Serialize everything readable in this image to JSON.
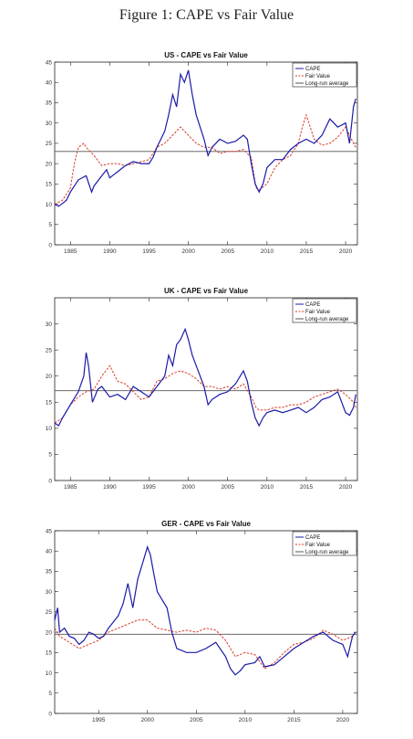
{
  "figure_title": "Figure 1: CAPE vs Fair Value",
  "colors": {
    "cape": "#1a1aa8",
    "fair_value": "#d93a2b",
    "long_run": "#555555",
    "axes": "#222222"
  },
  "chart_data": [
    {
      "type": "line",
      "title": "US - CAPE vs Fair Value",
      "xlabel": "",
      "ylabel": "",
      "xlim": [
        1983,
        2021.5
      ],
      "ylim": [
        0,
        45
      ],
      "xticks": [
        1985,
        1990,
        1995,
        2000,
        2005,
        2010,
        2015,
        2020
      ],
      "yticks": [
        0,
        5,
        10,
        15,
        20,
        25,
        30,
        35,
        40,
        45
      ],
      "grid": false,
      "legend": "top-right",
      "long_run_average": 23,
      "series": [
        {
          "name": "CAPE",
          "x": [
            1983,
            1983.5,
            1984,
            1984.5,
            1985,
            1985.5,
            1986,
            1987,
            1987.7,
            1988,
            1989,
            1989.6,
            1990,
            1991,
            1992,
            1993,
            1994,
            1995,
            1995.5,
            1996,
            1997,
            1997.5,
            1998,
            1998.5,
            1999,
            1999.5,
            2000,
            2000.5,
            2001,
            2001.5,
            2002,
            2002.5,
            2003,
            2004,
            2005,
            2006,
            2007,
            2007.5,
            2008,
            2008.5,
            2009,
            2009.5,
            2010,
            2011,
            2012,
            2013,
            2014,
            2015,
            2016,
            2017,
            2018,
            2019,
            2020,
            2020.5,
            2021,
            2021.3
          ],
          "values": [
            10,
            9.5,
            10.2,
            11,
            13,
            14.5,
            16,
            17,
            13,
            14.5,
            17,
            18.5,
            16.5,
            18,
            19.5,
            20.5,
            20,
            20,
            21.5,
            24,
            28,
            32,
            37,
            34,
            42,
            40,
            43,
            37,
            32,
            29,
            26,
            22,
            24,
            26,
            25,
            25.5,
            27,
            26,
            20,
            15,
            13,
            15,
            19,
            21,
            21,
            23.5,
            25,
            26,
            25,
            27,
            31,
            29,
            30,
            25,
            34,
            36
          ]
        },
        {
          "name": "Fair Value",
          "x": [
            1983,
            1984,
            1985,
            1985.5,
            1986,
            1986.7,
            1987,
            1988,
            1989,
            1990,
            1991,
            1992,
            1993,
            1994,
            1995,
            1996,
            1997,
            1998,
            1999,
            2000,
            2001,
            2002,
            2003,
            2004,
            2005,
            2006,
            2007,
            2008,
            2008.6,
            2009,
            2010,
            2011,
            2012,
            2013,
            2014,
            2014.5,
            2015,
            2015.5,
            2016,
            2017,
            2018,
            2019,
            2020,
            2021,
            2021.3
          ],
          "values": [
            10,
            11,
            14,
            20,
            24,
            25,
            24,
            22,
            19.5,
            20,
            20,
            19.5,
            20,
            20.5,
            21,
            24,
            25,
            27,
            29,
            27,
            25,
            24,
            24,
            22.5,
            23,
            23,
            23.5,
            21.5,
            14,
            13.5,
            15,
            19,
            21,
            22,
            25,
            29,
            32,
            29,
            26,
            24.5,
            25,
            26.5,
            29,
            25,
            24
          ]
        }
      ]
    },
    {
      "type": "line",
      "title": "UK - CAPE vs Fair Value",
      "xlabel": "",
      "ylabel": "",
      "xlim": [
        1983,
        2021.5
      ],
      "ylim": [
        0,
        35
      ],
      "xticks": [
        1985,
        1990,
        1995,
        2000,
        2005,
        2010,
        2015,
        2020
      ],
      "yticks": [
        0,
        5,
        10,
        15,
        20,
        25,
        30
      ],
      "grid": false,
      "legend": "top-right",
      "long_run_average": 17.2,
      "series": [
        {
          "name": "CAPE",
          "x": [
            1983,
            1983.5,
            1984,
            1985,
            1986,
            1986.7,
            1987,
            1987.3,
            1987.8,
            1988.5,
            1989,
            1990,
            1991,
            1992,
            1993,
            1994,
            1995,
            1996,
            1997,
            1997.5,
            1998,
            1998.5,
            1999,
            1999.6,
            2000,
            2000.5,
            2001,
            2002,
            2002.5,
            2003,
            2004,
            2005,
            2006,
            2007,
            2007.5,
            2008,
            2008.5,
            2009,
            2009.5,
            2010,
            2011,
            2012,
            2013,
            2014,
            2015,
            2016,
            2017,
            2018,
            2019,
            2020,
            2020.5,
            2021,
            2021.3
          ],
          "values": [
            11,
            10.5,
            12,
            14.5,
            17,
            20,
            24.5,
            22,
            15,
            17.5,
            18,
            16,
            16.5,
            15.5,
            18,
            17,
            16,
            18,
            20,
            24,
            22,
            26,
            27,
            29,
            27,
            24,
            22,
            18,
            14.5,
            15.5,
            16.5,
            17,
            18.5,
            21,
            19,
            15,
            12,
            10.5,
            12,
            13,
            13.5,
            13,
            13.5,
            14,
            13,
            14,
            15.5,
            16,
            17,
            13,
            12.5,
            14,
            16.5
          ]
        },
        {
          "name": "Fair Value",
          "x": [
            1983,
            1984,
            1985,
            1986,
            1987,
            1988,
            1989,
            1990,
            1991,
            1992,
            1993,
            1994,
            1995,
            1996,
            1997,
            1998,
            1999,
            2000,
            2001,
            2002,
            2003,
            2004,
            2005,
            2006,
            2007,
            2008,
            2008.6,
            2009,
            2010,
            2011,
            2012,
            2013,
            2014,
            2015,
            2016,
            2017,
            2018,
            2019,
            2020,
            2021,
            2021.3
          ],
          "values": [
            11,
            12,
            14.5,
            16,
            17,
            17.5,
            20,
            22,
            19,
            18.5,
            17,
            15.5,
            16,
            19,
            19.5,
            20.5,
            21,
            20.5,
            19.5,
            18,
            18,
            17.5,
            18,
            17.5,
            18.5,
            16,
            14,
            13.5,
            13.5,
            14,
            14,
            14.5,
            14.5,
            15,
            16,
            16.5,
            17,
            17.5,
            16.5,
            15,
            14
          ]
        }
      ]
    },
    {
      "type": "line",
      "title": "GER - CAPE vs Fair Value",
      "xlabel": "",
      "ylabel": "",
      "xlim": [
        1990.5,
        2021.5
      ],
      "ylim": [
        0,
        45
      ],
      "xticks": [
        1995,
        2000,
        2005,
        2010,
        2015,
        2020
      ],
      "yticks": [
        0,
        5,
        10,
        15,
        20,
        25,
        30,
        35,
        40,
        45
      ],
      "grid": false,
      "legend": "top-right",
      "long_run_average": 19.5,
      "series": [
        {
          "name": "CAPE",
          "x": [
            1990.5,
            1990.8,
            1991,
            1991.5,
            1992,
            1992.5,
            1993,
            1993.5,
            1994,
            1994.5,
            1995,
            1995.5,
            1996,
            1997,
            1997.5,
            1998,
            1998.5,
            1999,
            1999.5,
            2000,
            2000.3,
            2000.6,
            2001,
            2001.5,
            2002,
            2002.5,
            2003,
            2004,
            2005,
            2006,
            2007,
            2008,
            2008.5,
            2009,
            2009.5,
            2010,
            2011,
            2011.5,
            2012,
            2013,
            2014,
            2015,
            2016,
            2017,
            2018,
            2019,
            2020,
            2020.5,
            2021,
            2021.3
          ],
          "values": [
            23,
            26,
            20,
            21,
            19,
            18.5,
            17,
            18,
            20,
            19.5,
            18.5,
            19,
            21,
            24,
            27,
            32,
            26,
            33,
            37,
            41,
            39,
            35,
            30,
            28,
            26,
            20,
            16,
            15,
            15,
            16,
            17.5,
            14,
            11,
            9.5,
            10.5,
            12,
            12.5,
            14,
            11.5,
            12,
            14,
            16,
            17.5,
            19,
            20,
            18,
            17,
            14,
            19,
            20
          ]
        },
        {
          "name": "Fair Value",
          "x": [
            1990.5,
            1991,
            1992,
            1993,
            1994,
            1995,
            1996,
            1997,
            1998,
            1999,
            2000,
            2001,
            2002,
            2003,
            2004,
            2005,
            2006,
            2007,
            2008,
            2009,
            2010,
            2011,
            2012,
            2013,
            2014,
            2015,
            2016,
            2017,
            2018,
            2019,
            2020,
            2021,
            2021.3
          ],
          "values": [
            21,
            19,
            17.5,
            16,
            17,
            18,
            20,
            21,
            22,
            23,
            23,
            21,
            20.5,
            20,
            20.5,
            20,
            21,
            20.5,
            18,
            14,
            15,
            14.5,
            11,
            12.5,
            15,
            17,
            17.5,
            18.5,
            20.5,
            19.5,
            18,
            19,
            20
          ]
        }
      ]
    }
  ]
}
